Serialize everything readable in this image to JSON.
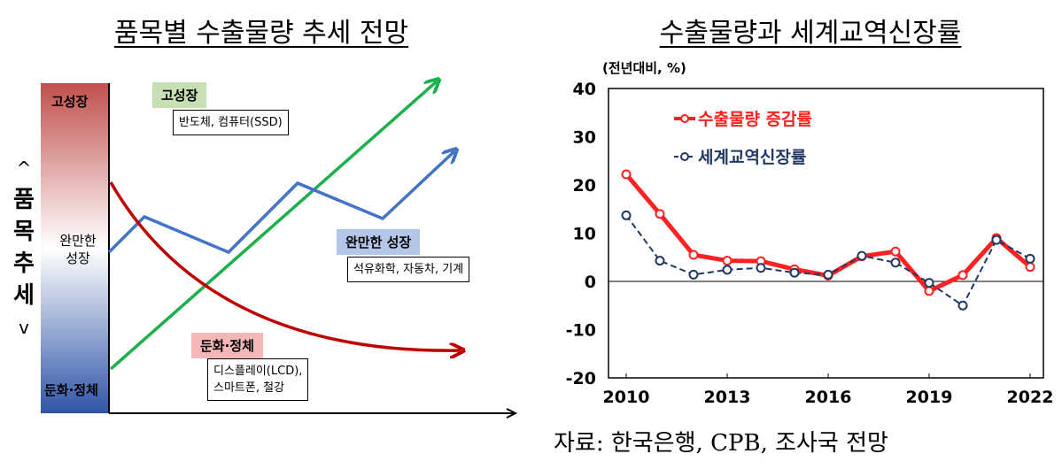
{
  "left_panel": {
    "title": "품목별 수출물량 추세 전망",
    "side_label": [
      "^",
      "품",
      "목",
      "추",
      "세",
      "v"
    ],
    "bar_labels": {
      "high": "고성장",
      "mid": "완만한\n성장",
      "low": "둔화·정체"
    },
    "groups": [
      {
        "tag": "고성장",
        "items": "반도체, 컴퓨터(SSD)",
        "color": "#c6e0b4"
      },
      {
        "tag": "완만한 성장",
        "items": "석유화학, 자동차, 기계",
        "color": "#b4c6e7"
      },
      {
        "tag": "둔화·정체",
        "items": "디스플레이(LCD),\n스마트폰, 철강",
        "color": "#f4b6b6"
      }
    ],
    "line_colors": {
      "green": "#1ab04c",
      "blue": "#4472c4",
      "red": "#c00000"
    }
  },
  "chart_data": {
    "type": "line",
    "title": "수출물량과 세계교역신장률",
    "unit_label": "(전년대비, %)",
    "x": [
      2010,
      2011,
      2012,
      2013,
      2014,
      2015,
      2016,
      2017,
      2018,
      2019,
      2020,
      2021,
      2022
    ],
    "x_ticks": [
      "2010",
      "2013",
      "2016",
      "2019",
      "2022"
    ],
    "y_ticks": [
      "40",
      "30",
      "20",
      "10",
      "0",
      "-10",
      "-20"
    ],
    "ylim": [
      -20,
      40
    ],
    "series": [
      {
        "name": "수출물량 증감률",
        "color": "#ff2020",
        "values": [
          22.2,
          14.0,
          5.5,
          4.3,
          4.2,
          2.5,
          1.2,
          5.2,
          6.2,
          -2.0,
          1.3,
          9.0,
          3.0
        ]
      },
      {
        "name": "세계교역신장률",
        "color": "#203864",
        "values": [
          13.7,
          4.3,
          1.4,
          2.4,
          2.8,
          1.8,
          1.4,
          5.3,
          3.9,
          -0.3,
          -5.0,
          8.6,
          4.7
        ]
      }
    ]
  },
  "source": "자료: 한국은행, CPB, 조사국 전망"
}
